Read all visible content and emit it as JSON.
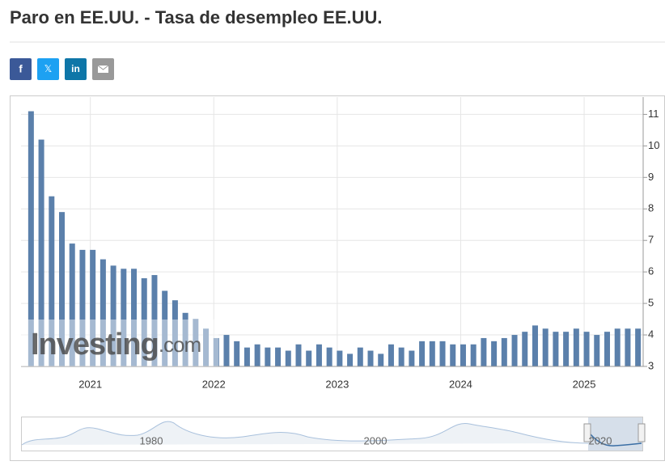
{
  "chart_data": {
    "type": "bar",
    "title": "Paro en EE.UU. - Tasa de desempleo EE.UU.",
    "share": [
      "f",
      "𝕏",
      "in"
    ],
    "watermark": "Investing",
    "watermark_suffix": ".com",
    "categories": [
      null,
      null,
      null,
      null,
      null,
      null,
      "2021",
      null,
      null,
      null,
      null,
      null,
      null,
      null,
      null,
      null,
      null,
      null,
      "2022",
      null,
      null,
      null,
      null,
      null,
      null,
      null,
      null,
      null,
      null,
      null,
      "2023",
      null,
      null,
      null,
      null,
      null,
      null,
      null,
      null,
      null,
      null,
      null,
      "2024",
      null,
      null,
      null,
      null,
      null,
      null,
      null,
      null,
      null,
      null,
      null,
      "2025",
      null,
      null,
      null,
      null,
      null
    ],
    "values": [
      11.1,
      10.2,
      8.4,
      7.9,
      6.9,
      6.7,
      6.7,
      6.4,
      6.2,
      6.1,
      6.1,
      5.8,
      5.9,
      5.4,
      5.1,
      4.7,
      4.5,
      4.2,
      3.9,
      4.0,
      3.8,
      3.6,
      3.7,
      3.6,
      3.6,
      3.5,
      3.7,
      3.5,
      3.7,
      3.6,
      3.5,
      3.4,
      3.6,
      3.5,
      3.4,
      3.7,
      3.6,
      3.5,
      3.8,
      3.8,
      3.8,
      3.7,
      3.7,
      3.7,
      3.9,
      3.8,
      3.9,
      4.0,
      4.1,
      4.3,
      4.2,
      4.1,
      4.1,
      4.2,
      4.1,
      4.0,
      4.1,
      4.2,
      4.2,
      4.2
    ],
    "color": "#5b80ab",
    "ylim": [
      3,
      11.55
    ],
    "yticks": [
      3,
      4,
      5,
      6,
      7,
      8,
      9,
      10,
      11
    ],
    "grid": true,
    "navigator_labels": [
      "1980",
      "2000",
      "2020"
    ]
  }
}
